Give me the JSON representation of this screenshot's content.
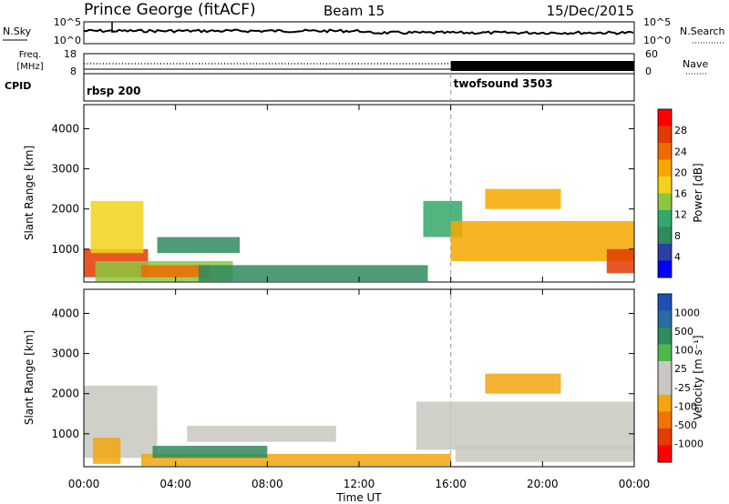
{
  "header": {
    "station": "Prince George (fitACF)",
    "beam": "Beam 15",
    "date": "15/Dec/2015"
  },
  "noise_panel": {
    "left_label": "N.Sky",
    "right_label": "N.Search",
    "left_ticks": [
      "10^5",
      "10^0"
    ],
    "right_ticks": [
      "10^5",
      "10^0"
    ]
  },
  "freq_panel": {
    "left_label_line1": "Freq.",
    "left_label_line2": "[MHz]",
    "right_label": "Nave",
    "left_ticks": [
      18,
      8
    ],
    "right_ticks": [
      60,
      0
    ]
  },
  "cpid_panel": {
    "label": "CPID",
    "programs": [
      {
        "name": "rbsp 200",
        "start_hour": 0
      },
      {
        "name": "twofsound 3503",
        "start_hour": 16
      }
    ]
  },
  "time_axis": {
    "label": "Time UT",
    "ticks": [
      "00:00",
      "04:00",
      "08:00",
      "12:00",
      "16:00",
      "20:00",
      "00:00"
    ],
    "range_hours": [
      0,
      24
    ],
    "mode_change_hour": 16
  },
  "chart_data": [
    {
      "type": "heatmap",
      "name": "power",
      "ylabel": "Slant Range [km]",
      "yticks": [
        1000,
        2000,
        3000,
        4000
      ],
      "ylim": [
        180,
        4600
      ],
      "colorbar": {
        "label": "Power [dB]",
        "ticks": [
          4,
          8,
          12,
          16,
          20,
          24,
          28
        ],
        "colors": [
          "#0000ff",
          "#2b3fa6",
          "#2f8a5e",
          "#34a86a",
          "#8cc63f",
          "#f2d21a",
          "#f6a800",
          "#f06a00",
          "#e23a00",
          "#ff0000"
        ]
      },
      "regions": [
        {
          "t": [
            0,
            2.8
          ],
          "r": [
            300,
            1000
          ],
          "value": 26
        },
        {
          "t": [
            0.3,
            2.6
          ],
          "r": [
            900,
            2200
          ],
          "value": 18
        },
        {
          "t": [
            0.5,
            6.5
          ],
          "r": [
            200,
            700
          ],
          "value": 14
        },
        {
          "t": [
            2.5,
            5.5
          ],
          "r": [
            300,
            600
          ],
          "value": 24
        },
        {
          "t": [
            3.2,
            6.8
          ],
          "r": [
            900,
            1300
          ],
          "value": 9
        },
        {
          "t": [
            5,
            15
          ],
          "r": [
            200,
            600
          ],
          "value": 8
        },
        {
          "t": [
            14.8,
            16.5
          ],
          "r": [
            1300,
            2200
          ],
          "value": 12
        },
        {
          "t": [
            16,
            24
          ],
          "r": [
            700,
            1700
          ],
          "value": 20
        },
        {
          "t": [
            17.5,
            20.8
          ],
          "r": [
            2000,
            2500
          ],
          "value": 22
        },
        {
          "t": [
            22.8,
            24
          ],
          "r": [
            400,
            1000
          ],
          "value": 26
        }
      ]
    },
    {
      "type": "heatmap",
      "name": "velocity",
      "ylabel": "Slant Range [km]",
      "yticks": [
        1000,
        2000,
        3000,
        4000
      ],
      "ylim": [
        180,
        4600
      ],
      "colorbar": {
        "label": "Velocity [m s⁻¹]",
        "ticks": [
          1000,
          500,
          100,
          25,
          -25,
          -100,
          -500,
          -1000
        ],
        "colors": [
          "#1f4fb0",
          "#2a6ba0",
          "#2f8a5e",
          "#4cb84a",
          "#c8c8c0",
          "#c8c8c0",
          "#f2a60d",
          "#f07400",
          "#e63c00",
          "#ff0000"
        ]
      },
      "regions": [
        {
          "t": [
            0,
            3.2
          ],
          "r": [
            400,
            2200
          ],
          "value": 0
        },
        {
          "t": [
            0.4,
            1.6
          ],
          "r": [
            250,
            900
          ],
          "value": -500
        },
        {
          "t": [
            2.5,
            16
          ],
          "r": [
            200,
            500
          ],
          "value": -200
        },
        {
          "t": [
            3,
            8
          ],
          "r": [
            400,
            700
          ],
          "value": 120
        },
        {
          "t": [
            4.5,
            11
          ],
          "r": [
            800,
            1200
          ],
          "value": 0
        },
        {
          "t": [
            14.5,
            24
          ],
          "r": [
            600,
            1800
          ],
          "value": 0
        },
        {
          "t": [
            17.5,
            20.8
          ],
          "r": [
            2000,
            2500
          ],
          "value": -400
        },
        {
          "t": [
            16.2,
            24
          ],
          "r": [
            300,
            700
          ],
          "value": 0
        }
      ]
    }
  ]
}
